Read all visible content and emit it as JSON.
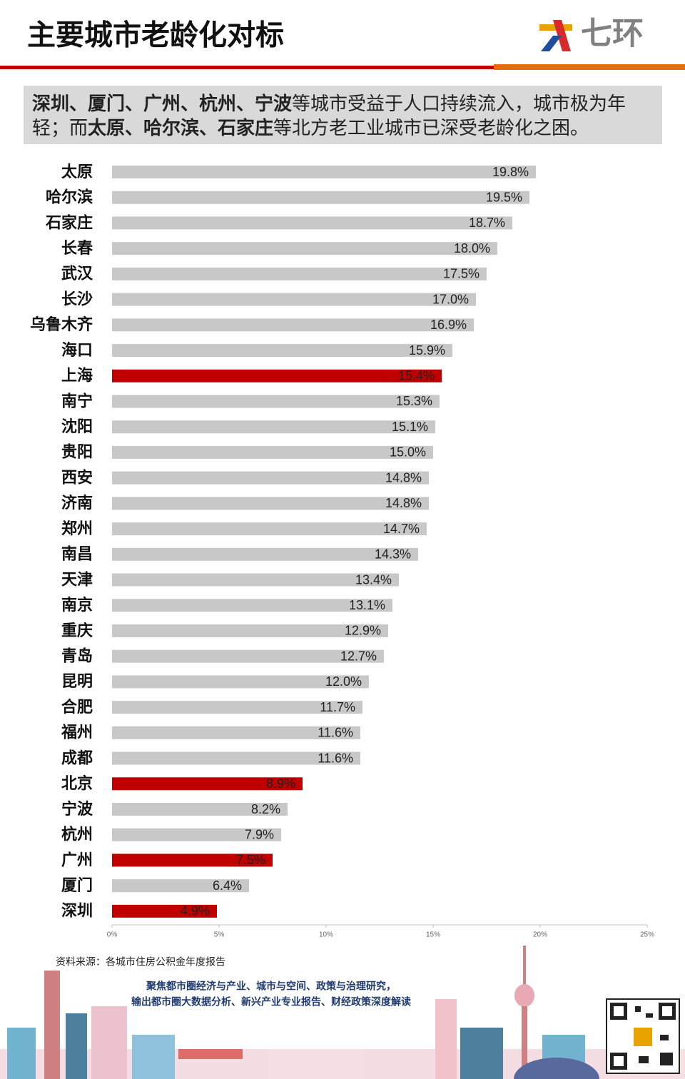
{
  "chart_data": {
    "type": "hbar",
    "title": "主要城市老龄化对标",
    "subtitle": [
      {
        "text": "深圳、厦门、广州、杭州、宁波",
        "bold": true
      },
      {
        "text": "等城市受益于人口持续流入，城市极为年轻；而",
        "bold": false
      },
      {
        "text": "太原、哈尔滨、石家庄",
        "bold": true
      },
      {
        "text": "等北方老工业城市已深受老龄化之困。",
        "bold": false
      }
    ],
    "categories": [
      "太原",
      "哈尔滨",
      "石家庄",
      "长春",
      "武汉",
      "长沙",
      "乌鲁木齐",
      "海口",
      "上海",
      "南宁",
      "沈阳",
      "贵阳",
      "西安",
      "济南",
      "郑州",
      "南昌",
      "天津",
      "南京",
      "重庆",
      "青岛",
      "昆明",
      "合肥",
      "福州",
      "成都",
      "北京",
      "宁波",
      "杭州",
      "广州",
      "厦门",
      "深圳"
    ],
    "values": [
      19.8,
      19.5,
      18.7,
      18.0,
      17.5,
      17.0,
      16.9,
      15.9,
      15.4,
      15.3,
      15.1,
      15.0,
      14.8,
      14.8,
      14.7,
      14.3,
      13.4,
      13.1,
      12.9,
      12.7,
      12.0,
      11.7,
      11.6,
      11.6,
      8.9,
      8.2,
      7.9,
      7.5,
      6.4,
      4.9
    ],
    "value_labels": [
      "19.8%",
      "19.5%",
      "18.7%",
      "18.0%",
      "17.5%",
      "17.0%",
      "16.9%",
      "15.9%",
      "15.4%",
      "15.3%",
      "15.1%",
      "15.0%",
      "14.8%",
      "14.8%",
      "14.7%",
      "14.3%",
      "13.4%",
      "13.1%",
      "12.9%",
      "12.7%",
      "12.0%",
      "11.7%",
      "11.6%",
      "11.6%",
      "8.9%",
      "8.2%",
      "7.9%",
      "7.5%",
      "6.4%",
      "4.9%"
    ],
    "colors": [
      "#c8c8c8",
      "#c8c8c8",
      "#c8c8c8",
      "#c8c8c8",
      "#c8c8c8",
      "#c8c8c8",
      "#c8c8c8",
      "#c8c8c8",
      "#c00000",
      "#c8c8c8",
      "#c8c8c8",
      "#c8c8c8",
      "#c8c8c8",
      "#c8c8c8",
      "#c8c8c8",
      "#c8c8c8",
      "#c8c8c8",
      "#c8c8c8",
      "#c8c8c8",
      "#c8c8c8",
      "#c8c8c8",
      "#c8c8c8",
      "#c8c8c8",
      "#c8c8c8",
      "#c00000",
      "#c8c8c8",
      "#c8c8c8",
      "#c00000",
      "#c8c8c8",
      "#c00000"
    ],
    "xlim": [
      0,
      25
    ],
    "xticks": [
      {
        "value": 0,
        "label": "0%"
      },
      {
        "value": 5,
        "label": "5%"
      },
      {
        "value": 10,
        "label": "10%"
      },
      {
        "value": 15,
        "label": "15%"
      },
      {
        "value": 20,
        "label": "20%"
      },
      {
        "value": 25,
        "label": "25%"
      }
    ]
  },
  "logo": "七环",
  "source": "资料来源：各城市住房公积金年度报告",
  "tagline": [
    "聚焦都市圈经济与产业、城市与空间、政策与治理研究，",
    "输出都市圈大数据分析、新兴产业专业报告、财经政策深度解读"
  ]
}
